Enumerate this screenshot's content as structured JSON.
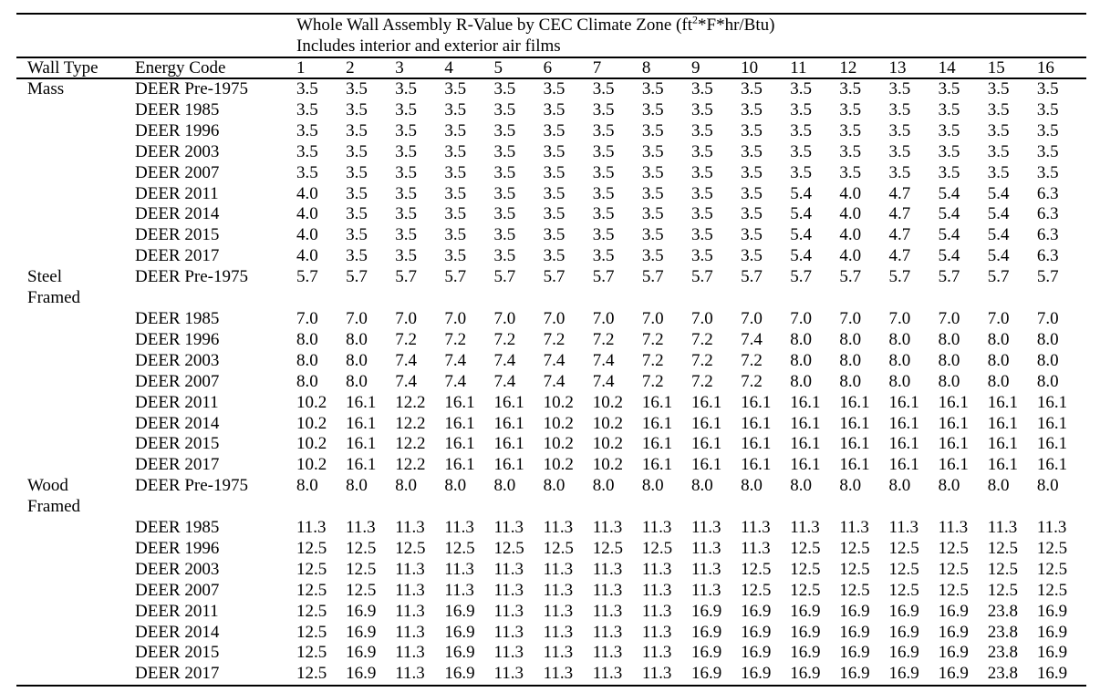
{
  "table": {
    "title_main": "Whole Wall Assembly R-Value by CEC Climate Zone (ft",
    "title_sup": "2",
    "title_tail": "*F*hr/Btu)",
    "subtitle": "Includes interior and exterior air films",
    "headers": {
      "wall_type": "Wall Type",
      "energy_code": "Energy Code"
    },
    "zone_headers": [
      "1",
      "2",
      "3",
      "4",
      "5",
      "6",
      "7",
      "8",
      "9",
      "10",
      "11",
      "12",
      "13",
      "14",
      "15",
      "16"
    ],
    "sections": [
      {
        "wall_type": "Mass",
        "wall_type_lines": [
          "Mass"
        ],
        "rows": [
          {
            "energy_code": "DEER Pre-1975",
            "values": [
              "3.5",
              "3.5",
              "3.5",
              "3.5",
              "3.5",
              "3.5",
              "3.5",
              "3.5",
              "3.5",
              "3.5",
              "3.5",
              "3.5",
              "3.5",
              "3.5",
              "3.5",
              "3.5"
            ]
          },
          {
            "energy_code": "DEER 1985",
            "values": [
              "3.5",
              "3.5",
              "3.5",
              "3.5",
              "3.5",
              "3.5",
              "3.5",
              "3.5",
              "3.5",
              "3.5",
              "3.5",
              "3.5",
              "3.5",
              "3.5",
              "3.5",
              "3.5"
            ]
          },
          {
            "energy_code": "DEER 1996",
            "values": [
              "3.5",
              "3.5",
              "3.5",
              "3.5",
              "3.5",
              "3.5",
              "3.5",
              "3.5",
              "3.5",
              "3.5",
              "3.5",
              "3.5",
              "3.5",
              "3.5",
              "3.5",
              "3.5"
            ]
          },
          {
            "energy_code": "DEER 2003",
            "values": [
              "3.5",
              "3.5",
              "3.5",
              "3.5",
              "3.5",
              "3.5",
              "3.5",
              "3.5",
              "3.5",
              "3.5",
              "3.5",
              "3.5",
              "3.5",
              "3.5",
              "3.5",
              "3.5"
            ]
          },
          {
            "energy_code": "DEER 2007",
            "values": [
              "3.5",
              "3.5",
              "3.5",
              "3.5",
              "3.5",
              "3.5",
              "3.5",
              "3.5",
              "3.5",
              "3.5",
              "3.5",
              "3.5",
              "3.5",
              "3.5",
              "3.5",
              "3.5"
            ]
          },
          {
            "energy_code": "DEER 2011",
            "values": [
              "4.0",
              "3.5",
              "3.5",
              "3.5",
              "3.5",
              "3.5",
              "3.5",
              "3.5",
              "3.5",
              "3.5",
              "5.4",
              "4.0",
              "4.7",
              "5.4",
              "5.4",
              "6.3"
            ]
          },
          {
            "energy_code": "DEER 2014",
            "values": [
              "4.0",
              "3.5",
              "3.5",
              "3.5",
              "3.5",
              "3.5",
              "3.5",
              "3.5",
              "3.5",
              "3.5",
              "5.4",
              "4.0",
              "4.7",
              "5.4",
              "5.4",
              "6.3"
            ]
          },
          {
            "energy_code": "DEER 2015",
            "values": [
              "4.0",
              "3.5",
              "3.5",
              "3.5",
              "3.5",
              "3.5",
              "3.5",
              "3.5",
              "3.5",
              "3.5",
              "5.4",
              "4.0",
              "4.7",
              "5.4",
              "5.4",
              "6.3"
            ]
          },
          {
            "energy_code": "DEER 2017",
            "values": [
              "4.0",
              "3.5",
              "3.5",
              "3.5",
              "3.5",
              "3.5",
              "3.5",
              "3.5",
              "3.5",
              "3.5",
              "5.4",
              "4.0",
              "4.7",
              "5.4",
              "5.4",
              "6.3"
            ]
          }
        ]
      },
      {
        "wall_type": "Steel Framed",
        "wall_type_lines": [
          "Steel",
          "Framed"
        ],
        "rows": [
          {
            "energy_code": "DEER Pre-1975",
            "values": [
              "5.7",
              "5.7",
              "5.7",
              "5.7",
              "5.7",
              "5.7",
              "5.7",
              "5.7",
              "5.7",
              "5.7",
              "5.7",
              "5.7",
              "5.7",
              "5.7",
              "5.7",
              "5.7"
            ]
          },
          {
            "energy_code": "DEER 1985",
            "values": [
              "7.0",
              "7.0",
              "7.0",
              "7.0",
              "7.0",
              "7.0",
              "7.0",
              "7.0",
              "7.0",
              "7.0",
              "7.0",
              "7.0",
              "7.0",
              "7.0",
              "7.0",
              "7.0"
            ]
          },
          {
            "energy_code": "DEER 1996",
            "values": [
              "8.0",
              "8.0",
              "7.2",
              "7.2",
              "7.2",
              "7.2",
              "7.2",
              "7.2",
              "7.2",
              "7.4",
              "8.0",
              "8.0",
              "8.0",
              "8.0",
              "8.0",
              "8.0"
            ]
          },
          {
            "energy_code": "DEER 2003",
            "values": [
              "8.0",
              "8.0",
              "7.4",
              "7.4",
              "7.4",
              "7.4",
              "7.4",
              "7.2",
              "7.2",
              "7.2",
              "8.0",
              "8.0",
              "8.0",
              "8.0",
              "8.0",
              "8.0"
            ]
          },
          {
            "energy_code": "DEER 2007",
            "values": [
              "8.0",
              "8.0",
              "7.4",
              "7.4",
              "7.4",
              "7.4",
              "7.4",
              "7.2",
              "7.2",
              "7.2",
              "8.0",
              "8.0",
              "8.0",
              "8.0",
              "8.0",
              "8.0"
            ]
          },
          {
            "energy_code": "DEER 2011",
            "values": [
              "10.2",
              "16.1",
              "12.2",
              "16.1",
              "16.1",
              "10.2",
              "10.2",
              "16.1",
              "16.1",
              "16.1",
              "16.1",
              "16.1",
              "16.1",
              "16.1",
              "16.1",
              "16.1"
            ]
          },
          {
            "energy_code": "DEER 2014",
            "values": [
              "10.2",
              "16.1",
              "12.2",
              "16.1",
              "16.1",
              "10.2",
              "10.2",
              "16.1",
              "16.1",
              "16.1",
              "16.1",
              "16.1",
              "16.1",
              "16.1",
              "16.1",
              "16.1"
            ]
          },
          {
            "energy_code": "DEER 2015",
            "values": [
              "10.2",
              "16.1",
              "12.2",
              "16.1",
              "16.1",
              "10.2",
              "10.2",
              "16.1",
              "16.1",
              "16.1",
              "16.1",
              "16.1",
              "16.1",
              "16.1",
              "16.1",
              "16.1"
            ]
          },
          {
            "energy_code": "DEER 2017",
            "values": [
              "10.2",
              "16.1",
              "12.2",
              "16.1",
              "16.1",
              "10.2",
              "10.2",
              "16.1",
              "16.1",
              "16.1",
              "16.1",
              "16.1",
              "16.1",
              "16.1",
              "16.1",
              "16.1"
            ]
          }
        ]
      },
      {
        "wall_type": "Wood Framed",
        "wall_type_lines": [
          "Wood",
          "Framed"
        ],
        "rows": [
          {
            "energy_code": "DEER Pre-1975",
            "values": [
              "8.0",
              "8.0",
              "8.0",
              "8.0",
              "8.0",
              "8.0",
              "8.0",
              "8.0",
              "8.0",
              "8.0",
              "8.0",
              "8.0",
              "8.0",
              "8.0",
              "8.0",
              "8.0"
            ]
          },
          {
            "energy_code": "DEER 1985",
            "values": [
              "11.3",
              "11.3",
              "11.3",
              "11.3",
              "11.3",
              "11.3",
              "11.3",
              "11.3",
              "11.3",
              "11.3",
              "11.3",
              "11.3",
              "11.3",
              "11.3",
              "11.3",
              "11.3"
            ]
          },
          {
            "energy_code": "DEER 1996",
            "values": [
              "12.5",
              "12.5",
              "12.5",
              "12.5",
              "12.5",
              "12.5",
              "12.5",
              "12.5",
              "11.3",
              "11.3",
              "12.5",
              "12.5",
              "12.5",
              "12.5",
              "12.5",
              "12.5"
            ]
          },
          {
            "energy_code": "DEER 2003",
            "values": [
              "12.5",
              "12.5",
              "11.3",
              "11.3",
              "11.3",
              "11.3",
              "11.3",
              "11.3",
              "11.3",
              "12.5",
              "12.5",
              "12.5",
              "12.5",
              "12.5",
              "12.5",
              "12.5"
            ]
          },
          {
            "energy_code": "DEER 2007",
            "values": [
              "12.5",
              "12.5",
              "11.3",
              "11.3",
              "11.3",
              "11.3",
              "11.3",
              "11.3",
              "11.3",
              "12.5",
              "12.5",
              "12.5",
              "12.5",
              "12.5",
              "12.5",
              "12.5"
            ]
          },
          {
            "energy_code": "DEER 2011",
            "values": [
              "12.5",
              "16.9",
              "11.3",
              "16.9",
              "11.3",
              "11.3",
              "11.3",
              "11.3",
              "16.9",
              "16.9",
              "16.9",
              "16.9",
              "16.9",
              "16.9",
              "23.8",
              "16.9"
            ]
          },
          {
            "energy_code": "DEER 2014",
            "values": [
              "12.5",
              "16.9",
              "11.3",
              "16.9",
              "11.3",
              "11.3",
              "11.3",
              "11.3",
              "16.9",
              "16.9",
              "16.9",
              "16.9",
              "16.9",
              "16.9",
              "23.8",
              "16.9"
            ]
          },
          {
            "energy_code": "DEER 2015",
            "values": [
              "12.5",
              "16.9",
              "11.3",
              "16.9",
              "11.3",
              "11.3",
              "11.3",
              "11.3",
              "16.9",
              "16.9",
              "16.9",
              "16.9",
              "16.9",
              "16.9",
              "23.8",
              "16.9"
            ]
          },
          {
            "energy_code": "DEER 2017",
            "values": [
              "12.5",
              "16.9",
              "11.3",
              "16.9",
              "11.3",
              "11.3",
              "11.3",
              "11.3",
              "16.9",
              "16.9",
              "16.9",
              "16.9",
              "16.9",
              "16.9",
              "23.8",
              "16.9"
            ]
          }
        ]
      }
    ]
  }
}
